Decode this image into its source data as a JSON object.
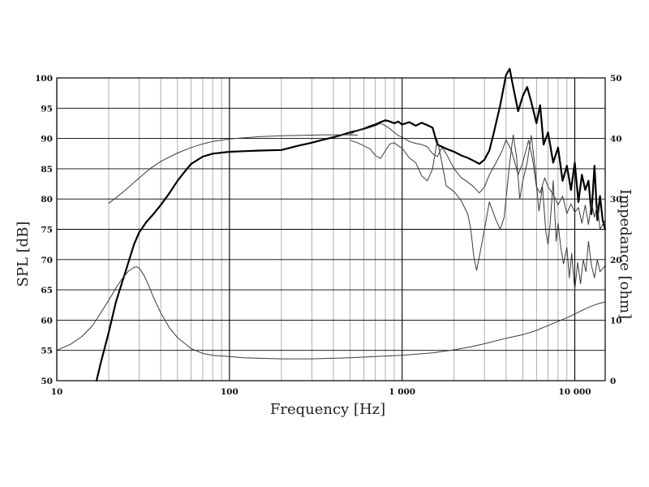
{
  "chart_data": {
    "type": "line",
    "xlabel": "Frequency [Hz]",
    "ylabel": "SPL [dB]",
    "y2label": "Impedance [ohm]",
    "x_scale": "log",
    "xlim": [
      10,
      15000
    ],
    "ylim": [
      50,
      100
    ],
    "y2lim": [
      0,
      50
    ],
    "grid": true,
    "x_ticks": [
      {
        "value": 10,
        "label": "10"
      },
      {
        "value": 100,
        "label": "100"
      },
      {
        "value": 1000,
        "label": "1 000"
      },
      {
        "value": 10000,
        "label": "10 000"
      }
    ],
    "y_ticks": [
      {
        "value": 50,
        "label": "50"
      },
      {
        "value": 55,
        "label": "55"
      },
      {
        "value": 60,
        "label": "60"
      },
      {
        "value": 65,
        "label": "65"
      },
      {
        "value": 70,
        "label": "70"
      },
      {
        "value": 75,
        "label": "75"
      },
      {
        "value": 80,
        "label": "80"
      },
      {
        "value": 85,
        "label": "85"
      },
      {
        "value": 90,
        "label": "90"
      },
      {
        "value": 95,
        "label": "95"
      },
      {
        "value": 100,
        "label": "100"
      }
    ],
    "y2_ticks": [
      {
        "value": 0,
        "label": "0"
      },
      {
        "value": 10,
        "label": "10"
      },
      {
        "value": 20,
        "label": "20"
      },
      {
        "value": 30,
        "label": "30"
      },
      {
        "value": 40,
        "label": "40"
      },
      {
        "value": 50,
        "label": "50"
      }
    ],
    "series": [
      {
        "axis": "left",
        "style": "thick",
        "x": [
          17,
          18,
          20,
          22,
          25,
          28,
          30,
          33,
          36,
          40,
          45,
          50,
          55,
          60,
          70,
          80,
          100,
          120,
          150,
          200,
          250,
          300,
          350,
          400,
          450,
          500,
          550,
          600,
          650,
          700,
          750,
          800,
          850,
          900,
          950,
          1000,
          1100,
          1200,
          1300,
          1400,
          1500,
          1600,
          1800,
          2000,
          2200,
          2400,
          2600,
          2800,
          3000,
          3200,
          3400,
          3700,
          4000,
          4200,
          4400,
          4700,
          5000,
          5300,
          5600,
          6000,
          6300,
          6600,
          7000,
          7500,
          8000,
          8500,
          9000,
          9500,
          10000,
          10500,
          11000,
          11500,
          12000,
          12500,
          13000,
          13500,
          14000,
          14500,
          15000
        ],
        "y": [
          50,
          53,
          58,
          63,
          68,
          72.5,
          74.5,
          76.2,
          77.4,
          79,
          81,
          83,
          84.5,
          85.8,
          87,
          87.5,
          87.8,
          87.9,
          88,
          88.1,
          88.8,
          89.3,
          89.8,
          90.2,
          90.6,
          91,
          91.3,
          91.6,
          92,
          92.3,
          92.7,
          93,
          92.8,
          92.5,
          92.8,
          92.3,
          92.7,
          92.1,
          92.6,
          92.2,
          91.8,
          89,
          88.3,
          87.8,
          87.2,
          86.8,
          86.3,
          85.8,
          86.5,
          88,
          91,
          95.5,
          100.5,
          101.5,
          98.5,
          94.5,
          97,
          98.5,
          96,
          92.5,
          95.5,
          89,
          91,
          86,
          88.5,
          83,
          85.5,
          81.5,
          86,
          79.5,
          84,
          81.5,
          83,
          77.5,
          85.5,
          76.5,
          80.5,
          76.5,
          75
        ]
      },
      {
        "axis": "left",
        "style": "thin",
        "x": [
          500,
          550,
          600,
          650,
          700,
          750,
          800,
          850,
          900,
          950,
          1000,
          1100,
          1200,
          1300,
          1400,
          1500,
          1600,
          1700,
          1800,
          2000,
          2200,
          2400,
          2600,
          2800,
          3000,
          3200,
          3500,
          3800,
          4000,
          4300,
          4700,
          5000,
          5400,
          5700,
          6000,
          6300,
          6700,
          7000,
          7500,
          8000,
          8500,
          9000,
          9500,
          10000,
          10500,
          11000,
          11500,
          12000,
          12500,
          13000,
          13500,
          14000,
          15000
        ],
        "y": [
          90.7,
          91.3,
          91.5,
          91.8,
          92.1,
          92.5,
          92.1,
          91.6,
          91,
          90.5,
          90.2,
          89.5,
          89.2,
          89,
          88.6,
          87.5,
          87,
          88.5,
          87.5,
          85,
          83.5,
          82.8,
          82,
          81,
          82,
          84,
          86,
          88,
          89.8,
          88,
          84,
          86,
          89.7,
          86.5,
          82,
          81,
          83.5,
          82,
          80.8,
          79,
          80.5,
          77.6,
          79.2,
          77.8,
          78.6,
          76,
          79,
          75.8,
          79.5,
          77,
          79,
          75,
          76.5
        ]
      },
      {
        "axis": "left",
        "style": "thin",
        "x": [
          500,
          550,
          600,
          650,
          700,
          750,
          800,
          850,
          900,
          950,
          1000,
          1100,
          1200,
          1300,
          1400,
          1500,
          1600,
          1700,
          1800,
          2000,
          2200,
          2400,
          2500,
          2600,
          2700,
          2800,
          3000,
          3200,
          3500,
          3700,
          3900,
          4200,
          4400,
          4600,
          4800,
          5000,
          5300,
          5600,
          5900,
          6200,
          6500,
          6800,
          7000,
          7200,
          7500,
          7800,
          8000,
          8300,
          8600,
          9000,
          9300,
          9600,
          10000,
          10400,
          10800,
          11200,
          11600,
          12000,
          12500,
          13000,
          13500,
          14000,
          15000
        ],
        "y": [
          89.7,
          89.3,
          88.8,
          88.3,
          87.2,
          86.7,
          88,
          89.1,
          89.3,
          88.8,
          88.4,
          86.8,
          86,
          83.8,
          83,
          85,
          89.8,
          86,
          82.2,
          81.2,
          79.7,
          77.5,
          75,
          70.5,
          68.2,
          70.5,
          75,
          79.5,
          76.5,
          75,
          77,
          86,
          90.6,
          87,
          80,
          83,
          86,
          90.5,
          85,
          78,
          82,
          74.5,
          72.5,
          76,
          83,
          73,
          76,
          72,
          69.3,
          72,
          67,
          71,
          65,
          69.5,
          66,
          70,
          68,
          73,
          69,
          67,
          70,
          68,
          69
        ]
      },
      {
        "axis": "left",
        "style": "thin",
        "x": [
          20,
          22,
          25,
          30,
          35,
          40,
          50,
          60,
          70,
          80,
          100,
          120,
          150,
          200,
          250,
          300,
          350,
          400,
          450,
          500,
          550
        ],
        "y": [
          79.3,
          80.2,
          81.5,
          83.5,
          85.1,
          86.2,
          87.6,
          88.5,
          89.1,
          89.5,
          89.9,
          90.1,
          90.3,
          90.45,
          90.5,
          90.55,
          90.6,
          90.6,
          90.6,
          90.6,
          90.55
        ]
      },
      {
        "axis": "right",
        "style": "thin",
        "x": [
          10,
          12,
          14,
          16,
          18,
          20,
          22,
          24,
          26,
          28,
          29,
          30,
          32,
          34,
          36,
          40,
          45,
          50,
          60,
          70,
          80,
          100,
          120,
          150,
          200,
          250,
          300,
          400,
          500,
          700,
          1000,
          1500,
          2000,
          2500,
          3000,
          4000,
          5000,
          6000,
          7000,
          8000,
          9000,
          10000,
          11000,
          12000,
          13000,
          14000,
          15000
        ],
        "y": [
          5,
          6,
          7.3,
          9,
          11.2,
          13.3,
          15.3,
          16.9,
          18.1,
          18.7,
          18.8,
          18.6,
          17.4,
          15.8,
          14,
          11.2,
          8.7,
          7.1,
          5.3,
          4.5,
          4.2,
          4,
          3.8,
          3.7,
          3.6,
          3.6,
          3.6,
          3.7,
          3.8,
          4,
          4.2,
          4.6,
          5.1,
          5.6,
          6.1,
          7,
          7.6,
          8.3,
          9.1,
          9.8,
          10.4,
          11,
          11.6,
          12.1,
          12.5,
          12.8,
          13
        ]
      }
    ]
  }
}
